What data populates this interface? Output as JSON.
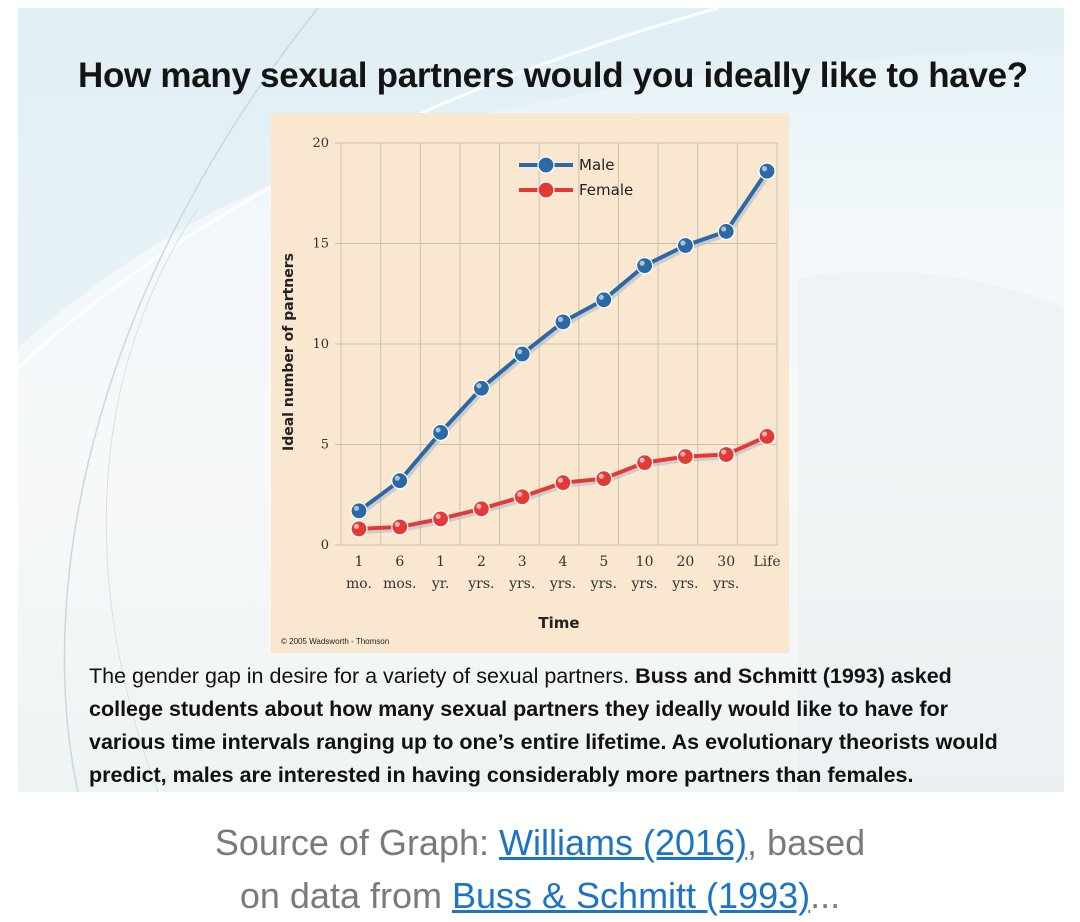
{
  "slide": {
    "title": "How many sexual partners would you ideally like to have?",
    "copyright": "© 2005 Wadsworth - Thomson",
    "caption_lead": "The gender gap in desire for a variety of sexual partners.",
    "caption_bold": "Buss and Schmitt (1993) asked college students about how many sexual partners they ideally would like to have for various time intervals ranging up to one’s entire lifetime. As evolutionary theorists would predict, males are interested in having considerably more partners than females."
  },
  "source": {
    "prefix": "Source of Graph: ",
    "link1": "Williams (2016)",
    "mid1": ", based",
    "line2_prefix": "on data from ",
    "link2": "Buss & Schmitt (1993)",
    "suffix": "..."
  },
  "colors": {
    "male": "#2a68a6",
    "female": "#e23b37",
    "panel_bg": "#fae7cf",
    "grid": "#c9c1b5",
    "link": "#1d73c4"
  },
  "chart_data": {
    "type": "line",
    "xlabel": "Time",
    "ylabel": "Ideal number of partners",
    "ylim": [
      0,
      20
    ],
    "yticks": [
      0,
      5,
      10,
      15,
      20
    ],
    "grid": true,
    "legend_position": "top-center",
    "categories": [
      {
        "top": "1",
        "bottom": "mo."
      },
      {
        "top": "6",
        "bottom": "mos."
      },
      {
        "top": "1",
        "bottom": "yr."
      },
      {
        "top": "2",
        "bottom": "yrs."
      },
      {
        "top": "3",
        "bottom": "yrs."
      },
      {
        "top": "4",
        "bottom": "yrs."
      },
      {
        "top": "5",
        "bottom": "yrs."
      },
      {
        "top": "10",
        "bottom": "yrs."
      },
      {
        "top": "20",
        "bottom": "yrs."
      },
      {
        "top": "30",
        "bottom": "yrs."
      },
      {
        "top": "Life",
        "bottom": ""
      }
    ],
    "series": [
      {
        "name": "Male",
        "color": "#2a68a6",
        "values": [
          1.7,
          3.2,
          5.6,
          7.8,
          9.5,
          11.1,
          12.2,
          13.9,
          14.9,
          15.6,
          18.6
        ]
      },
      {
        "name": "Female",
        "color": "#e23b37",
        "values": [
          0.8,
          0.9,
          1.3,
          1.8,
          2.4,
          3.1,
          3.3,
          4.1,
          4.4,
          4.5,
          5.4
        ]
      }
    ]
  }
}
